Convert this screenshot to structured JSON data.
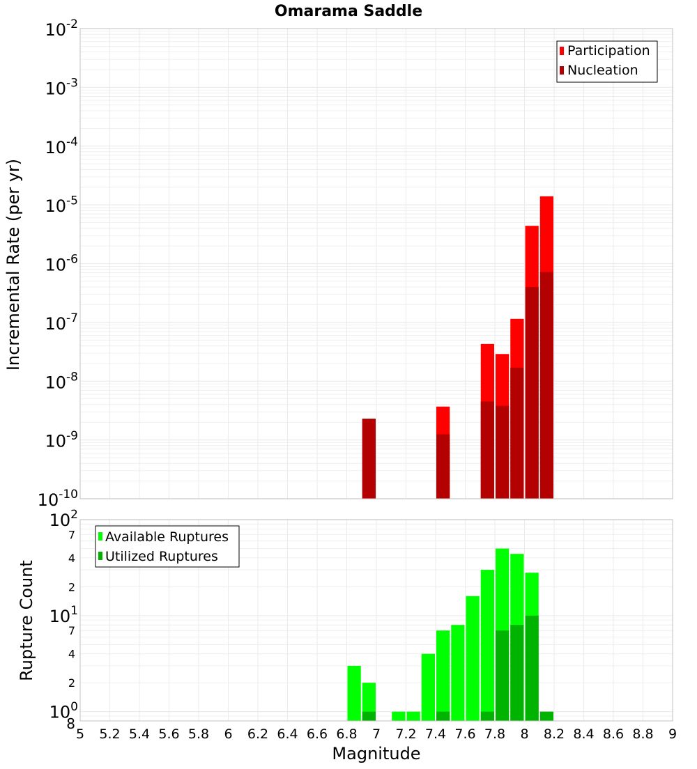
{
  "title": "Omarama Saddle",
  "colors": {
    "participation": "#ff0000",
    "nucleation": "#b30000",
    "available": "#00ff00",
    "utilized": "#00b300",
    "grid": "#ebebeb",
    "frame": "#c0c0c0"
  },
  "chart_data": [
    {
      "type": "bar",
      "title": "Omarama Saddle",
      "xlabel": "",
      "ylabel": "Incremental Rate (per yr)",
      "yscale": "log",
      "ylim": [
        1e-10,
        0.01
      ],
      "xlim": [
        5,
        9
      ],
      "y_tick_labels": [
        "10-10",
        "10-9",
        "10-8",
        "10-7",
        "10-6",
        "10-5",
        "10-4",
        "10-3",
        "10-2"
      ],
      "legend": {
        "position": "top-right",
        "entries": [
          "Participation",
          "Nucleation"
        ]
      },
      "grid": true,
      "series": [
        {
          "name": "Participation",
          "points": [
            {
              "x": 6.95,
              "y": 2.3e-09
            },
            {
              "x": 7.45,
              "y": 3.7e-09
            },
            {
              "x": 7.75,
              "y": 4.3e-08
            },
            {
              "x": 7.85,
              "y": 2.9e-08
            },
            {
              "x": 7.95,
              "y": 1.15e-07
            },
            {
              "x": 8.05,
              "y": 4.4e-06
            },
            {
              "x": 8.15,
              "y": 1.4e-05
            }
          ]
        },
        {
          "name": "Nucleation",
          "points": [
            {
              "x": 6.95,
              "y": 2.3e-09
            },
            {
              "x": 7.45,
              "y": 1.25e-09
            },
            {
              "x": 7.75,
              "y": 4.5e-09
            },
            {
              "x": 7.85,
              "y": 3.8e-09
            },
            {
              "x": 7.95,
              "y": 1.7e-08
            },
            {
              "x": 8.05,
              "y": 4e-07
            },
            {
              "x": 8.15,
              "y": 7.2e-07
            }
          ]
        }
      ]
    },
    {
      "type": "bar",
      "title": "",
      "xlabel": "Magnitude",
      "ylabel": "Rupture Count",
      "yscale": "log",
      "ylim": [
        0.8,
        100
      ],
      "xlim": [
        5,
        9
      ],
      "x_tick_labels": [
        "5",
        "5.2",
        "5.4",
        "5.6",
        "5.8",
        "6",
        "6.2",
        "6.4",
        "6.6",
        "6.8",
        "7",
        "7.2",
        "7.4",
        "7.6",
        "7.8",
        "8",
        "8.2",
        "8.4",
        "8.6",
        "8.8",
        "9"
      ],
      "y_tick_labels": [
        {
          "v": 0.8,
          "t": "8"
        },
        {
          "v": 1,
          "t": "100"
        },
        {
          "v": 2,
          "t": "2"
        },
        {
          "v": 4,
          "t": "4"
        },
        {
          "v": 7,
          "t": "7"
        },
        {
          "v": 10,
          "t": "101"
        },
        {
          "v": 20,
          "t": "2"
        },
        {
          "v": 40,
          "t": "4"
        },
        {
          "v": 70,
          "t": "7"
        },
        {
          "v": 100,
          "t": "102"
        }
      ],
      "legend": {
        "position": "top-left",
        "entries": [
          "Available Ruptures",
          "Utilized Ruptures"
        ]
      },
      "grid": true,
      "series": [
        {
          "name": "Available Ruptures",
          "points": [
            {
              "x": 6.85,
              "y": 3
            },
            {
              "x": 6.95,
              "y": 2
            },
            {
              "x": 7.15,
              "y": 1
            },
            {
              "x": 7.25,
              "y": 1
            },
            {
              "x": 7.35,
              "y": 4
            },
            {
              "x": 7.45,
              "y": 7
            },
            {
              "x": 7.55,
              "y": 8
            },
            {
              "x": 7.65,
              "y": 16
            },
            {
              "x": 7.75,
              "y": 30
            },
            {
              "x": 7.85,
              "y": 50
            },
            {
              "x": 7.95,
              "y": 44
            },
            {
              "x": 8.05,
              "y": 28
            }
          ]
        },
        {
          "name": "Utilized Ruptures",
          "points": [
            {
              "x": 6.95,
              "y": 1
            },
            {
              "x": 7.45,
              "y": 1
            },
            {
              "x": 7.75,
              "y": 1
            },
            {
              "x": 7.85,
              "y": 7
            },
            {
              "x": 7.95,
              "y": 8
            },
            {
              "x": 8.05,
              "y": 10
            },
            {
              "x": 8.15,
              "y": 1
            }
          ]
        }
      ]
    }
  ]
}
